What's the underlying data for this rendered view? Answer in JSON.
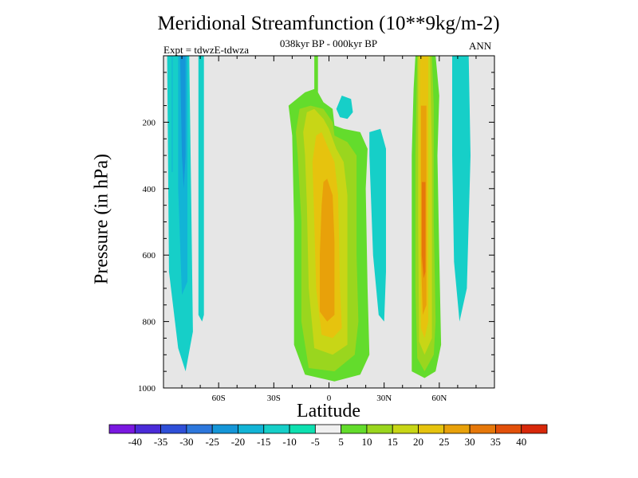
{
  "chart_data": {
    "type": "contour",
    "title": "Meridional Streamfunction (10**9kg/m-2)",
    "subtitle": "038kyr BP - 000kyr BP",
    "experiment_label": "Expt = tdwzE-tdwza",
    "season_label": "ANN",
    "xlabel": "Latitude",
    "ylabel": "Pressure (in hPa)",
    "x_ticks": [
      {
        "value": -60,
        "label": "60S"
      },
      {
        "value": -30,
        "label": "30S"
      },
      {
        "value": 0,
        "label": "0"
      },
      {
        "value": 30,
        "label": "30N"
      },
      {
        "value": 60,
        "label": "60N"
      }
    ],
    "y_ticks": [
      {
        "value": 200,
        "label": "200"
      },
      {
        "value": 400,
        "label": "400"
      },
      {
        "value": 600,
        "label": "600"
      },
      {
        "value": 800,
        "label": "800"
      },
      {
        "value": 1000,
        "label": "1000"
      }
    ],
    "xlim": [
      -90,
      90
    ],
    "ylim": [
      1000,
      0
    ],
    "background_color": "#e6e6e6",
    "colorbar": {
      "levels": [
        "-40",
        "-35",
        "-30",
        "-25",
        "-20",
        "-15",
        "-10",
        "-5",
        "5",
        "10",
        "15",
        "20",
        "25",
        "30",
        "35",
        "40"
      ],
      "colors": [
        "#7a18e0",
        "#4a2bd8",
        "#2f4fd8",
        "#2d77dc",
        "#1596d8",
        "#12b4d6",
        "#16cfc8",
        "#0ee0b0",
        "#f0f0f0",
        "#63dc2c",
        "#9ad61e",
        "#c8d616",
        "#e6c30e",
        "#e8a10a",
        "#e6780a",
        "#e2500a",
        "#d8280a"
      ]
    },
    "regions": [
      {
        "name": "sh-band-left",
        "level": "-10",
        "color": "#16cfc8",
        "poly": [
          [
            -88,
            0
          ],
          [
            -76,
            0
          ],
          [
            -75,
            400
          ],
          [
            -74,
            830
          ],
          [
            -78,
            950
          ],
          [
            -82,
            880
          ],
          [
            -87,
            650
          ]
        ]
      },
      {
        "name": "sh-band-left-core",
        "level": "-15",
        "color": "#12b4d6",
        "poly": [
          [
            -82,
            0
          ],
          [
            -77,
            0
          ],
          [
            -77,
            400
          ],
          [
            -77,
            680
          ],
          [
            -80,
            720
          ],
          [
            -82,
            400
          ]
        ]
      },
      {
        "name": "sh-band-left-min",
        "level": "-20",
        "color": "#1596d8",
        "poly": [
          [
            -81,
            0
          ],
          [
            -78,
            0
          ],
          [
            -78,
            300
          ],
          [
            -79,
            400
          ],
          [
            -80,
            300
          ]
        ]
      },
      {
        "name": "sh-band-right",
        "level": "-10",
        "color": "#16cfc8",
        "poly": [
          [
            -71,
            0
          ],
          [
            -68,
            0
          ],
          [
            -68,
            780
          ],
          [
            -69,
            800
          ],
          [
            -71,
            780
          ]
        ]
      },
      {
        "name": "sh-thin-stripe",
        "level": "-15",
        "color": "#12b4d6",
        "poly": [
          [
            -85.5,
            0
          ],
          [
            -85,
            0
          ],
          [
            -85,
            350
          ],
          [
            -85.5,
            350
          ]
        ]
      },
      {
        "name": "tropic-ne-blob",
        "level": "-10",
        "color": "#16cfc8",
        "poly": [
          [
            4,
            160
          ],
          [
            7,
            120
          ],
          [
            12,
            130
          ],
          [
            13,
            170
          ],
          [
            10,
            190
          ],
          [
            6,
            185
          ]
        ]
      },
      {
        "name": "tropic-ne-band",
        "level": "-10",
        "color": "#16cfc8",
        "poly": [
          [
            22,
            230
          ],
          [
            28,
            220
          ],
          [
            31,
            280
          ],
          [
            31,
            650
          ],
          [
            30,
            800
          ],
          [
            27,
            780
          ],
          [
            24,
            600
          ],
          [
            22,
            300
          ]
        ]
      },
      {
        "name": "nh-band-right",
        "level": "-10",
        "color": "#16cfc8",
        "poly": [
          [
            67,
            0
          ],
          [
            76,
            0
          ],
          [
            77,
            300
          ],
          [
            75,
            700
          ],
          [
            71,
            800
          ],
          [
            68,
            620
          ],
          [
            67,
            300
          ]
        ]
      },
      {
        "name": "tropic-cell-5",
        "level": "5",
        "color": "#63dc2c",
        "poly": [
          [
            -8,
            0
          ],
          [
            -6,
            0
          ],
          [
            -6,
            110
          ],
          [
            -3,
            140
          ],
          [
            2,
            160
          ],
          [
            3,
            210
          ],
          [
            8,
            220
          ],
          [
            17,
            230
          ],
          [
            21,
            280
          ],
          [
            20,
            400
          ],
          [
            21,
            700
          ],
          [
            22,
            900
          ],
          [
            17,
            960
          ],
          [
            3,
            980
          ],
          [
            -13,
            960
          ],
          [
            -19,
            870
          ],
          [
            -19,
            500
          ],
          [
            -20,
            240
          ],
          [
            -22,
            150
          ],
          [
            -13,
            110
          ],
          [
            -8,
            100
          ]
        ]
      },
      {
        "name": "tropic-cell-10",
        "level": "10",
        "color": "#9ad61e",
        "poly": [
          [
            -16,
            160
          ],
          [
            -10,
            150
          ],
          [
            -3,
            160
          ],
          [
            2,
            200
          ],
          [
            3,
            240
          ],
          [
            10,
            260
          ],
          [
            15,
            300
          ],
          [
            15,
            600
          ],
          [
            16,
            800
          ],
          [
            14,
            900
          ],
          [
            3,
            950
          ],
          [
            -11,
            940
          ],
          [
            -15,
            800
          ],
          [
            -15,
            500
          ],
          [
            -17,
            300
          ],
          [
            -18,
            230
          ]
        ]
      },
      {
        "name": "tropic-cell-15",
        "level": "15",
        "color": "#c8d616",
        "poly": [
          [
            -12,
            170
          ],
          [
            -8,
            160
          ],
          [
            -3,
            190
          ],
          [
            0,
            220
          ],
          [
            4,
            280
          ],
          [
            8,
            320
          ],
          [
            10,
            420
          ],
          [
            10,
            700
          ],
          [
            10,
            870
          ],
          [
            2,
            900
          ],
          [
            -8,
            880
          ],
          [
            -11,
            700
          ],
          [
            -12,
            450
          ],
          [
            -13,
            300
          ],
          [
            -14,
            230
          ]
        ]
      },
      {
        "name": "tropic-cell-20",
        "level": "20",
        "color": "#e6c30e",
        "poly": [
          [
            -7,
            240
          ],
          [
            -4,
            230
          ],
          [
            -1,
            270
          ],
          [
            3,
            320
          ],
          [
            5,
            420
          ],
          [
            6,
            700
          ],
          [
            7,
            820
          ],
          [
            2,
            850
          ],
          [
            -4,
            840
          ],
          [
            -7,
            700
          ],
          [
            -8,
            500
          ],
          [
            -9,
            320
          ]
        ]
      },
      {
        "name": "tropic-cell-25",
        "level": "25",
        "color": "#e8a10a",
        "poly": [
          [
            -3,
            380
          ],
          [
            -1,
            370
          ],
          [
            2,
            420
          ],
          [
            3,
            560
          ],
          [
            3,
            780
          ],
          [
            -1,
            800
          ],
          [
            -5,
            770
          ],
          [
            -5,
            600
          ],
          [
            -4,
            450
          ]
        ]
      },
      {
        "name": "nh-cell-5",
        "level": "5",
        "color": "#63dc2c",
        "poly": [
          [
            47,
            0
          ],
          [
            58,
            0
          ],
          [
            60,
            120
          ],
          [
            59,
            300
          ],
          [
            60,
            600
          ],
          [
            61,
            870
          ],
          [
            58,
            950
          ],
          [
            52,
            970
          ],
          [
            45,
            950
          ],
          [
            45,
            700
          ],
          [
            45,
            300
          ],
          [
            46,
            100
          ]
        ]
      },
      {
        "name": "nh-cell-10",
        "level": "10",
        "color": "#9ad61e",
        "poly": [
          [
            48,
            0
          ],
          [
            56,
            0
          ],
          [
            57,
            150
          ],
          [
            57,
            500
          ],
          [
            58,
            800
          ],
          [
            57,
            900
          ],
          [
            52,
            950
          ],
          [
            48,
            910
          ],
          [
            47,
            700
          ],
          [
            47,
            300
          ]
        ]
      },
      {
        "name": "nh-cell-15",
        "level": "15",
        "color": "#c8d616",
        "poly": [
          [
            48.5,
            0
          ],
          [
            55,
            0
          ],
          [
            56,
            300
          ],
          [
            56,
            850
          ],
          [
            52,
            900
          ],
          [
            49,
            860
          ],
          [
            48.5,
            500
          ]
        ]
      },
      {
        "name": "nh-cell-20",
        "level": "20",
        "color": "#e6c30e",
        "poly": [
          [
            49.5,
            0
          ],
          [
            54,
            0
          ],
          [
            54,
            400
          ],
          [
            54,
            800
          ],
          [
            52,
            850
          ],
          [
            50,
            820
          ],
          [
            49.5,
            500
          ]
        ]
      },
      {
        "name": "nh-cell-25",
        "level": "25",
        "color": "#e8a10a",
        "poly": [
          [
            50,
            150
          ],
          [
            53,
            150
          ],
          [
            53,
            500
          ],
          [
            53,
            750
          ],
          [
            51,
            780
          ],
          [
            50,
            600
          ]
        ]
      },
      {
        "name": "nh-cell-30",
        "level": "30",
        "color": "#e6780a",
        "poly": [
          [
            50.5,
            380
          ],
          [
            52.5,
            380
          ],
          [
            52.5,
            650
          ],
          [
            51.5,
            670
          ],
          [
            50.5,
            600
          ]
        ]
      }
    ]
  }
}
